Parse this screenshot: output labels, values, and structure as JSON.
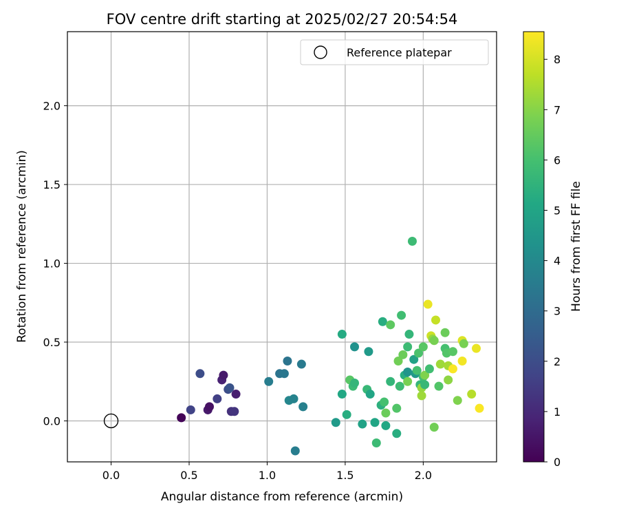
{
  "chart_data": {
    "type": "scatter",
    "title": "FOV centre drift starting at 2025/02/27 20:54:54",
    "xlabel": "Angular distance from reference (arcmin)",
    "ylabel": "Rotation from reference (arcmin)",
    "xlim": [
      -0.28,
      2.47
    ],
    "ylim": [
      -0.26,
      2.47
    ],
    "xticks": [
      0.0,
      0.5,
      1.0,
      1.5,
      2.0
    ],
    "xtick_labels": [
      "0.0",
      "0.5",
      "1.0",
      "1.5",
      "2.0"
    ],
    "yticks": [
      0.0,
      0.5,
      1.0,
      1.5,
      2.0
    ],
    "ytick_labels": [
      "0.0",
      "0.5",
      "1.0",
      "1.5",
      "2.0"
    ],
    "grid": true,
    "legend": {
      "position": "top-right",
      "label": "Reference platepar"
    },
    "reference_point": {
      "x": 0.0,
      "y": 0.0
    },
    "colorbar": {
      "label": "Hours from first FF file",
      "colormap": "viridis",
      "range": [
        0,
        8.55
      ],
      "ticks": [
        0,
        1,
        2,
        3,
        4,
        5,
        6,
        7,
        8
      ],
      "tick_labels": [
        "0",
        "1",
        "2",
        "3",
        "4",
        "5",
        "6",
        "7",
        "8"
      ]
    },
    "points": [
      {
        "x": 0.45,
        "y": 0.02,
        "c": 0.1
      },
      {
        "x": 0.51,
        "y": 0.07,
        "c": 1.7
      },
      {
        "x": 0.57,
        "y": 0.3,
        "c": 2.0
      },
      {
        "x": 0.62,
        "y": 0.07,
        "c": 0.6
      },
      {
        "x": 0.63,
        "y": 0.09,
        "c": 0.4
      },
      {
        "x": 0.68,
        "y": 0.14,
        "c": 1.6
      },
      {
        "x": 0.71,
        "y": 0.26,
        "c": 0.8
      },
      {
        "x": 0.72,
        "y": 0.29,
        "c": 0.6
      },
      {
        "x": 0.75,
        "y": 0.2,
        "c": 2.0
      },
      {
        "x": 0.76,
        "y": 0.21,
        "c": 2.2
      },
      {
        "x": 0.77,
        "y": 0.06,
        "c": 1.2
      },
      {
        "x": 0.79,
        "y": 0.06,
        "c": 1.3
      },
      {
        "x": 0.8,
        "y": 0.17,
        "c": 0.7
      },
      {
        "x": 1.01,
        "y": 0.25,
        "c": 3.6
      },
      {
        "x": 1.08,
        "y": 0.3,
        "c": 3.3
      },
      {
        "x": 1.11,
        "y": 0.3,
        "c": 3.4
      },
      {
        "x": 1.13,
        "y": 0.38,
        "c": 3.3
      },
      {
        "x": 1.14,
        "y": 0.13,
        "c": 3.9
      },
      {
        "x": 1.17,
        "y": 0.14,
        "c": 3.8
      },
      {
        "x": 1.18,
        "y": -0.19,
        "c": 3.6
      },
      {
        "x": 1.22,
        "y": 0.36,
        "c": 3.5
      },
      {
        "x": 1.23,
        "y": 0.09,
        "c": 3.7
      },
      {
        "x": 1.44,
        "y": -0.01,
        "c": 4.6
      },
      {
        "x": 1.48,
        "y": 0.55,
        "c": 5.2
      },
      {
        "x": 1.48,
        "y": 0.17,
        "c": 5.1
      },
      {
        "x": 1.51,
        "y": 0.04,
        "c": 5.3
      },
      {
        "x": 1.53,
        "y": 0.26,
        "c": 6.3
      },
      {
        "x": 1.55,
        "y": 0.22,
        "c": 5.8
      },
      {
        "x": 1.56,
        "y": 0.24,
        "c": 5.6
      },
      {
        "x": 1.56,
        "y": 0.47,
        "c": 4.3
      },
      {
        "x": 1.61,
        "y": -0.02,
        "c": 4.9
      },
      {
        "x": 1.64,
        "y": 0.2,
        "c": 5.7
      },
      {
        "x": 1.65,
        "y": 0.44,
        "c": 4.6
      },
      {
        "x": 1.66,
        "y": 0.17,
        "c": 5.0
      },
      {
        "x": 1.69,
        "y": -0.01,
        "c": 5.0
      },
      {
        "x": 1.7,
        "y": -0.14,
        "c": 5.8
      },
      {
        "x": 1.73,
        "y": 0.1,
        "c": 5.4
      },
      {
        "x": 1.74,
        "y": 0.63,
        "c": 5.3
      },
      {
        "x": 1.75,
        "y": 0.12,
        "c": 6.0
      },
      {
        "x": 1.76,
        "y": -0.03,
        "c": 5.1
      },
      {
        "x": 1.76,
        "y": 0.05,
        "c": 6.6
      },
      {
        "x": 1.79,
        "y": 0.61,
        "c": 6.4
      },
      {
        "x": 1.79,
        "y": 0.25,
        "c": 5.6
      },
      {
        "x": 1.83,
        "y": 0.08,
        "c": 6.2
      },
      {
        "x": 1.83,
        "y": -0.08,
        "c": 5.3
      },
      {
        "x": 1.84,
        "y": 0.38,
        "c": 6.7
      },
      {
        "x": 1.85,
        "y": 0.22,
        "c": 5.8
      },
      {
        "x": 1.86,
        "y": 0.67,
        "c": 5.9
      },
      {
        "x": 1.87,
        "y": 0.42,
        "c": 6.6
      },
      {
        "x": 1.88,
        "y": 0.29,
        "c": 5.3
      },
      {
        "x": 1.9,
        "y": 0.25,
        "c": 6.8
      },
      {
        "x": 1.9,
        "y": 0.31,
        "c": 4.4
      },
      {
        "x": 1.9,
        "y": 0.47,
        "c": 5.8
      },
      {
        "x": 1.91,
        "y": 0.55,
        "c": 5.6
      },
      {
        "x": 1.93,
        "y": 1.14,
        "c": 5.8
      },
      {
        "x": 1.94,
        "y": 0.39,
        "c": 4.9
      },
      {
        "x": 1.95,
        "y": 0.3,
        "c": 4.6
      },
      {
        "x": 1.96,
        "y": 0.32,
        "c": 6.0
      },
      {
        "x": 1.97,
        "y": 0.43,
        "c": 6.1
      },
      {
        "x": 1.98,
        "y": 0.23,
        "c": 5.6
      },
      {
        "x": 1.99,
        "y": 0.21,
        "c": 7.2
      },
      {
        "x": 1.99,
        "y": 0.16,
        "c": 7.3
      },
      {
        "x": 2.0,
        "y": 0.47,
        "c": 6.3
      },
      {
        "x": 2.0,
        "y": 0.28,
        "c": 5.9
      },
      {
        "x": 2.01,
        "y": 0.29,
        "c": 6.9
      },
      {
        "x": 2.01,
        "y": 0.23,
        "c": 5.7
      },
      {
        "x": 2.03,
        "y": 0.74,
        "c": 8.3
      },
      {
        "x": 2.04,
        "y": 0.33,
        "c": 5.9
      },
      {
        "x": 2.05,
        "y": 0.54,
        "c": 7.9
      },
      {
        "x": 2.06,
        "y": 0.52,
        "c": 7.2
      },
      {
        "x": 2.07,
        "y": 0.51,
        "c": 6.8
      },
      {
        "x": 2.07,
        "y": -0.04,
        "c": 6.7
      },
      {
        "x": 2.08,
        "y": 0.64,
        "c": 7.8
      },
      {
        "x": 2.1,
        "y": 0.22,
        "c": 6.2
      },
      {
        "x": 2.11,
        "y": 0.36,
        "c": 7.3
      },
      {
        "x": 2.14,
        "y": 0.46,
        "c": 6.0
      },
      {
        "x": 2.14,
        "y": 0.56,
        "c": 6.6
      },
      {
        "x": 2.15,
        "y": 0.43,
        "c": 6.2
      },
      {
        "x": 2.16,
        "y": 0.35,
        "c": 7.4
      },
      {
        "x": 2.16,
        "y": 0.26,
        "c": 7.1
      },
      {
        "x": 2.19,
        "y": 0.44,
        "c": 6.3
      },
      {
        "x": 2.19,
        "y": 0.33,
        "c": 8.5
      },
      {
        "x": 2.22,
        "y": 0.13,
        "c": 6.9
      },
      {
        "x": 2.25,
        "y": 0.51,
        "c": 8.1
      },
      {
        "x": 2.25,
        "y": 0.38,
        "c": 8.4
      },
      {
        "x": 2.26,
        "y": 0.49,
        "c": 6.8
      },
      {
        "x": 2.31,
        "y": 0.17,
        "c": 7.6
      },
      {
        "x": 2.34,
        "y": 0.46,
        "c": 8.3
      },
      {
        "x": 2.36,
        "y": 0.08,
        "c": 8.5
      }
    ]
  }
}
